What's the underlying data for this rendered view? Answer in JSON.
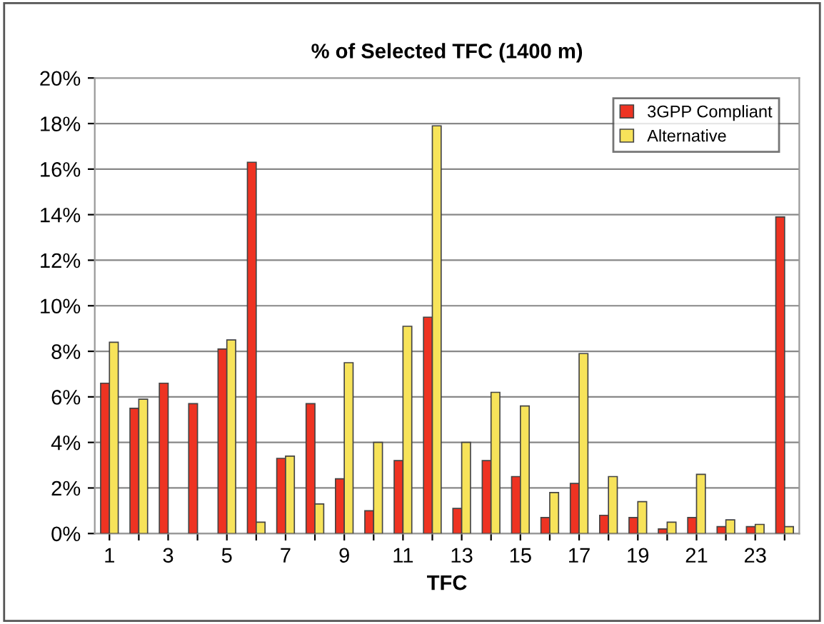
{
  "chart_data": {
    "type": "bar",
    "title": "% of Selected TFC (1400 m)",
    "xlabel": "TFC",
    "categories": [
      "1",
      null,
      "3",
      null,
      "5",
      null,
      "7",
      null,
      "9",
      null,
      "11",
      null,
      "13",
      null,
      "15",
      null,
      "17",
      null,
      "19",
      null,
      "21",
      null,
      "23",
      null
    ],
    "series": [
      {
        "name": "3GPP Compliant",
        "color": "#ee3322",
        "values": [
          6.6,
          5.5,
          6.6,
          5.7,
          8.1,
          16.3,
          3.3,
          5.7,
          2.4,
          1.0,
          3.2,
          9.5,
          1.1,
          3.2,
          2.5,
          0.7,
          2.2,
          0.8,
          0.7,
          0.2,
          0.7,
          0.3,
          0.3,
          13.9
        ]
      },
      {
        "name": "Alternative",
        "color": "#f7e35a",
        "values": [
          8.4,
          5.9,
          null,
          null,
          8.5,
          0.5,
          3.4,
          1.3,
          7.5,
          4.0,
          9.1,
          17.9,
          4.0,
          6.2,
          5.6,
          1.8,
          7.9,
          2.5,
          1.4,
          0.5,
          2.6,
          0.6,
          0.4,
          0.3
        ]
      }
    ],
    "ylim": [
      0,
      20
    ],
    "yticks": [
      {
        "value": 0,
        "label": "0%"
      },
      {
        "value": 2,
        "label": "2%"
      },
      {
        "value": 4,
        "label": "4%"
      },
      {
        "value": 6,
        "label": "6%"
      },
      {
        "value": 8,
        "label": "8%"
      },
      {
        "value": 10,
        "label": "10%"
      },
      {
        "value": 12,
        "label": "12%"
      },
      {
        "value": 14,
        "label": "14%"
      },
      {
        "value": 16,
        "label": "16%"
      },
      {
        "value": 18,
        "label": "18%"
      },
      {
        "value": 20,
        "label": "20%"
      }
    ],
    "grid": "y",
    "legend": "top right"
  }
}
